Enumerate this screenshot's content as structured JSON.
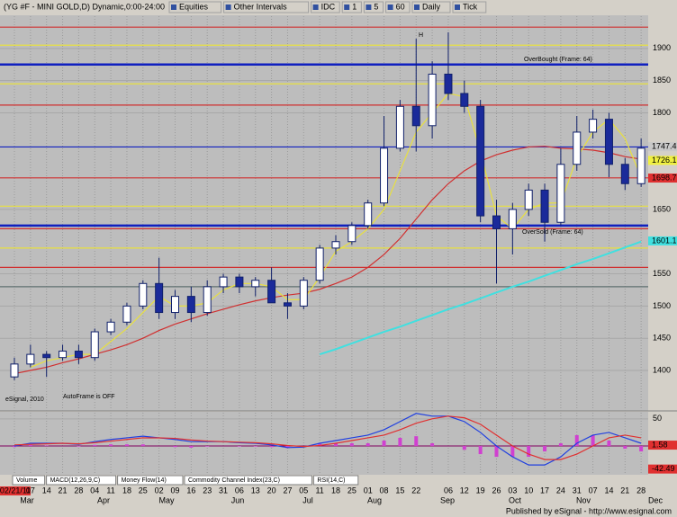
{
  "toolbar": {
    "symbol_title": "(YG #F - MINI GOLD,D) Dynamic,0:00-24:00",
    "buttons": [
      "Equities",
      "Other Intervals",
      "IDC",
      "1",
      "5",
      "60",
      "Daily",
      "Tick"
    ]
  },
  "tabs": [
    "Volume",
    "MACD(12,26,9,C)",
    "Money Flow(14)",
    "Commodity Channel Index(23,C)",
    "RSI(14,C)"
  ],
  "status": "Published by eSignal - http://www.esignal.com",
  "chart_data": {
    "type": "candlestick",
    "categories": [
      "02/21/11",
      "07",
      "14",
      "21",
      "28",
      "04",
      "11",
      "18",
      "25",
      "02",
      "09",
      "16",
      "23",
      "31",
      "06",
      "13",
      "20",
      "27",
      "05",
      "11",
      "18",
      "25",
      "01",
      "08",
      "15",
      "22",
      null,
      "06",
      "12",
      "19",
      "26",
      "03",
      "10",
      "17",
      "24",
      "31",
      "07",
      "14",
      "21",
      "28"
    ],
    "months": [
      "Mar",
      "Apr",
      "May",
      "Jun",
      "Jul",
      "Aug",
      "Sep",
      "Oct",
      "Nov",
      "Dec"
    ],
    "open": [
      1390,
      1410,
      1425,
      1420,
      1430,
      1420,
      1460,
      1475,
      1500,
      1535,
      1490,
      1515,
      1490,
      1530,
      1545,
      1530,
      1540,
      1505,
      1500,
      1540,
      1590,
      1600,
      1625,
      1660,
      1745,
      1810,
      1780,
      1860,
      1830,
      1810,
      1640,
      1620,
      1650,
      1680,
      1630,
      1720,
      1770,
      1790,
      1720,
      1690
    ],
    "high": [
      1420,
      1440,
      1430,
      1440,
      1440,
      1465,
      1480,
      1505,
      1540,
      1575,
      1525,
      1530,
      1540,
      1550,
      1550,
      1545,
      1560,
      1520,
      1545,
      1595,
      1610,
      1630,
      1665,
      1795,
      1820,
      1915,
      1880,
      1925,
      1850,
      1820,
      1665,
      1660,
      1690,
      1690,
      1745,
      1795,
      1805,
      1800,
      1730,
      1760
    ],
    "low": [
      1385,
      1405,
      1390,
      1415,
      1410,
      1415,
      1455,
      1470,
      1495,
      1480,
      1480,
      1475,
      1485,
      1520,
      1520,
      1515,
      1505,
      1480,
      1495,
      1535,
      1580,
      1595,
      1620,
      1655,
      1740,
      1740,
      1760,
      1820,
      1800,
      1630,
      1535,
      1580,
      1640,
      1600,
      1625,
      1710,
      1760,
      1700,
      1680,
      1685
    ],
    "close": [
      1410,
      1425,
      1420,
      1430,
      1420,
      1460,
      1475,
      1500,
      1535,
      1490,
      1515,
      1490,
      1530,
      1545,
      1530,
      1540,
      1505,
      1500,
      1540,
      1590,
      1600,
      1625,
      1660,
      1745,
      1810,
      1780,
      1860,
      1830,
      1810,
      1640,
      1620,
      1650,
      1680,
      1630,
      1720,
      1770,
      1790,
      1720,
      1690,
      1745
    ],
    "up_color": "#ffffff",
    "down_color": "#1a2a9a",
    "outline_color": "#10206a",
    "overlays": [
      {
        "color": "#d03030",
        "values": [
          1395,
          1400,
          1405,
          1412,
          1418,
          1425,
          1432,
          1440,
          1450,
          1462,
          1472,
          1480,
          1488,
          1495,
          1502,
          1508,
          1513,
          1517,
          1520,
          1526,
          1535,
          1545,
          1560,
          1580,
          1605,
          1635,
          1665,
          1690,
          1710,
          1725,
          1735,
          1742,
          1747,
          1748,
          1745,
          1744,
          1742,
          1738,
          1732,
          1728
        ]
      },
      {
        "color": "#e8e040",
        "values": [
          null,
          1405,
          1415,
          1420,
          1425,
          1425,
          1445,
          1465,
          1490,
          1515,
          1500,
          1500,
          1505,
          1525,
          1535,
          1535,
          1530,
          1510,
          1510,
          1545,
          1585,
          1600,
          1620,
          1650,
          1710,
          1770,
          1800,
          1830,
          1825,
          1740,
          1640,
          1620,
          1650,
          1660,
          1660,
          1730,
          1770,
          1790,
          1760,
          1700
        ]
      },
      {
        "color": "#40e0e0",
        "values": [
          null,
          null,
          null,
          null,
          null,
          null,
          null,
          null,
          null,
          null,
          null,
          null,
          null,
          null,
          null,
          null,
          null,
          null,
          null,
          1425,
          1433,
          1442,
          1451,
          1460,
          1468,
          1477,
          1486,
          1495,
          1503,
          1512,
          1521,
          1530,
          1538,
          1547,
          1556,
          1565,
          1573,
          1582,
          1591,
          1600
        ]
      }
    ],
    "levels": [
      {
        "value": 1933,
        "color": "#d03030"
      },
      {
        "value": 1905,
        "color": "#e8e040"
      },
      {
        "value": 1875,
        "color": "#1020c0",
        "thick": true
      },
      {
        "value": 1845,
        "color": "#e8e040"
      },
      {
        "value": 1812,
        "color": "#d03030"
      },
      {
        "value": 1747,
        "color": "#1020c0"
      },
      {
        "value": 1699,
        "color": "#d03030"
      },
      {
        "value": 1655,
        "color": "#e8e040"
      },
      {
        "value": 1625,
        "color": "#1020c0",
        "thick": true
      },
      {
        "value": 1620,
        "color": "#d03030"
      },
      {
        "value": 1590,
        "color": "#e8e040"
      },
      {
        "value": 1560,
        "color": "#d03030"
      },
      {
        "value": 1530,
        "color": "#607070"
      }
    ],
    "price_labels": [
      {
        "value": 1747.4,
        "color": "#c8c8c8"
      },
      {
        "value": 1726.1,
        "color": "#f0f040"
      },
      {
        "value": 1698.7,
        "color": "#e03030"
      },
      {
        "value": 1601.1,
        "color": "#40e0e0"
      }
    ],
    "ylim": [
      1340,
      1950
    ],
    "yticks": [
      1400,
      1450,
      1500,
      1550,
      1650,
      1800,
      1850,
      1900
    ],
    "annotations": [
      "OverBought (Frame: 64)",
      "OverSold (Frame: 64)",
      "AutoFrame is OFF",
      "eSignal, 2010",
      "H"
    ],
    "macd": {
      "ylim": [
        -53,
        63
      ],
      "yticks": [
        50
      ],
      "lines": [
        {
          "color": "#2040e0",
          "values": [
            0,
            5,
            5,
            5,
            3,
            8,
            12,
            15,
            18,
            15,
            12,
            8,
            8,
            8,
            6,
            5,
            2,
            -3,
            -2,
            5,
            10,
            15,
            20,
            30,
            45,
            60,
            55,
            55,
            45,
            25,
            0,
            -20,
            -35,
            -35,
            -20,
            5,
            20,
            25,
            15,
            5
          ]
        },
        {
          "color": "#e03030",
          "values": [
            2,
            3,
            4,
            5,
            4,
            6,
            9,
            12,
            15,
            15,
            14,
            11,
            9,
            8,
            7,
            6,
            4,
            1,
            -1,
            1,
            5,
            10,
            15,
            20,
            30,
            42,
            50,
            55,
            52,
            40,
            20,
            0,
            -15,
            -25,
            -25,
            -15,
            0,
            15,
            20,
            15
          ]
        }
      ],
      "histogram": {
        "color": "#d040d0",
        "values": [
          -2,
          2,
          1,
          0,
          -1,
          2,
          3,
          3,
          3,
          0,
          -2,
          -3,
          -1,
          0,
          -1,
          -1,
          -2,
          -4,
          -1,
          4,
          5,
          5,
          5,
          10,
          15,
          18,
          5,
          0,
          -7,
          -15,
          -20,
          -20,
          -20,
          -10,
          5,
          20,
          20,
          10,
          -5,
          -10
        ]
      },
      "labels": [
        {
          "value": 1.58,
          "color": "#e03030"
        },
        {
          "value": -42.49,
          "color": "#e03030"
        }
      ]
    }
  }
}
